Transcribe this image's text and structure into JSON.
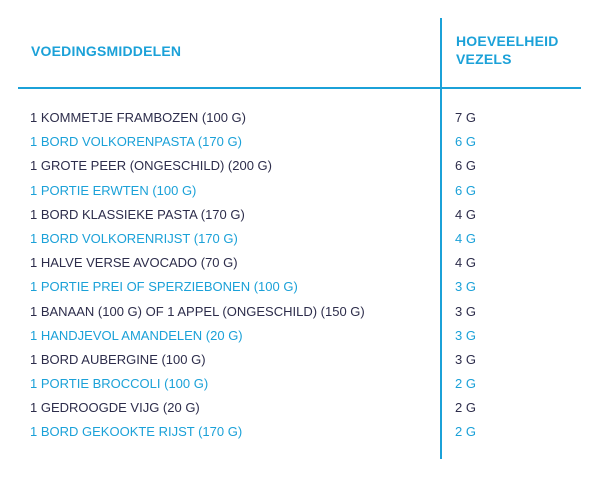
{
  "table": {
    "header": {
      "food": "VOEDINGSMIDDELEN",
      "fiber_line1": "HOEVEELHEID",
      "fiber_line2": "VEZELS"
    },
    "rows": [
      {
        "food": "1 KOMMETJE FRAMBOZEN (100 G)",
        "amount": "7 G"
      },
      {
        "food": "1 BORD VOLKORENPASTA (170 G)",
        "amount": "6 G"
      },
      {
        "food": "1 GROTE PEER (ONGESCHILD) (200 G)",
        "amount": "6 G"
      },
      {
        "food": "1 PORTIE ERWTEN (100 G)",
        "amount": "6 G"
      },
      {
        "food": "1 BORD KLASSIEKE PASTA (170 G)",
        "amount": "4 G"
      },
      {
        "food": "1 BORD VOLKORENRIJST (170 G)",
        "amount": "4 G"
      },
      {
        "food": "1 HALVE VERSE AVOCADO (70 G)",
        "amount": "4 G"
      },
      {
        "food": "1 PORTIE PREI OF SPERZIEBONEN (100 G)",
        "amount": "3 G"
      },
      {
        "food": "1 BANAAN (100 G) OF 1 APPEL (ONGESCHILD) (150 G)",
        "amount": "3 G"
      },
      {
        "food": "1 HANDJEVOL AMANDELEN (20 G)",
        "amount": "3 G"
      },
      {
        "food": "1 BORD AUBERGINE (100 G)",
        "amount": "3 G"
      },
      {
        "food": "1 PORTIE BROCCOLI (100 G)",
        "amount": "2 G"
      },
      {
        "food": "1 GEDROOGDE VIJG (20 G)",
        "amount": "2 G"
      },
      {
        "food": "1 BORD GEKOOKTE RIJST (170 G)",
        "amount": "2 G"
      }
    ]
  },
  "colors": {
    "accent": "#1ba1d8",
    "text_dark": "#2d2d4b"
  }
}
